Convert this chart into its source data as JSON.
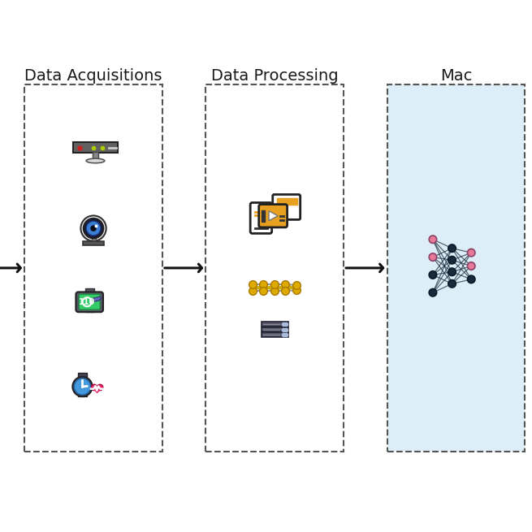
{
  "box1_label": "Data Acquisitions",
  "box2_label": "Data Processing",
  "box3_label": "Mac",
  "bg_color": "#ffffff",
  "box1_bg": "#ffffff",
  "box2_bg": "#ffffff",
  "box3_bg": "#ddeef8",
  "box_border_color": "#555555",
  "arrow_color": "#111111",
  "text_color": "#1a1a1a",
  "font_size_label": 14
}
